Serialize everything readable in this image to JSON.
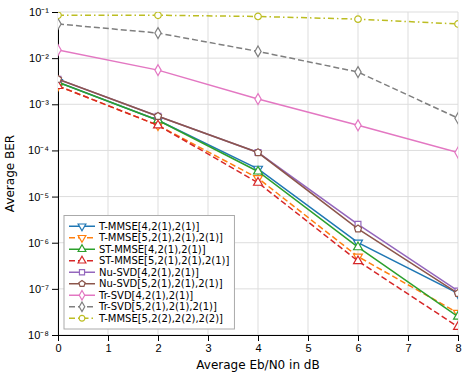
{
  "chart_data": {
    "type": "line",
    "xlabel": "Average Eb/N0 in dB",
    "ylabel": "Average BER",
    "x": [
      0,
      2,
      4,
      6,
      8
    ],
    "xlim": [
      0,
      8
    ],
    "xticks": [
      0,
      1,
      2,
      3,
      4,
      5,
      6,
      7,
      8
    ],
    "ylim": [
      1e-08,
      0.1
    ],
    "yticks": [
      {
        "value": 1e-08,
        "label": "10⁻⁸"
      },
      {
        "value": 1e-07,
        "label": "10⁻⁷"
      },
      {
        "value": 1e-06,
        "label": "10⁻⁶"
      },
      {
        "value": 1e-05,
        "label": "10⁻⁵"
      },
      {
        "value": 0.0001,
        "label": "10⁻⁴"
      },
      {
        "value": 0.001,
        "label": "10⁻³"
      },
      {
        "value": 0.01,
        "label": "10⁻²"
      },
      {
        "value": 0.1,
        "label": "10⁻¹"
      }
    ],
    "log": "y",
    "grid": true,
    "legend": "lower left",
    "series": [
      {
        "name": "T-MMSE[4,2(1),2(1)]",
        "marker": "triangle-down",
        "line_style": "solid",
        "values": [
          0.003,
          0.00045,
          4e-05,
          1e-06,
          8e-08
        ]
      },
      {
        "name": "T-MMSE[5,2(1),2(1),2(1)]",
        "marker": "triangle-down",
        "line_style": "dashed",
        "values": [
          0.0025,
          0.00035,
          2.5e-05,
          5e-07,
          3e-08
        ]
      },
      {
        "name": "ST-MMSE[4,2(1),2(1)]",
        "marker": "triangle-up",
        "line_style": "solid",
        "values": [
          0.003,
          0.00045,
          3.5e-05,
          8e-07,
          2.5e-08
        ]
      },
      {
        "name": "ST-MMSE[5,2(1),2(1),2(1)]",
        "marker": "triangle-up",
        "line_style": "dashed",
        "values": [
          0.0025,
          0.00035,
          2e-05,
          4e-07,
          1.5e-08
        ]
      },
      {
        "name": "Nu-SVD[4,2(1),2(1)]",
        "marker": "square",
        "line_style": "solid",
        "values": [
          0.0035,
          0.00055,
          9e-05,
          2.5e-06,
          9e-08
        ]
      },
      {
        "name": "Nu-SVD[5,2(1),2(1),2(1)]",
        "marker": "pentagon",
        "line_style": "solid",
        "values": [
          0.0035,
          0.00055,
          9e-05,
          2e-06,
          8e-08
        ]
      },
      {
        "name": "Tr-SVD[4,2(1),2(1)]",
        "marker": "diamond",
        "line_style": "solid",
        "values": [
          0.015,
          0.0055,
          0.0013,
          0.00035,
          9e-05
        ]
      },
      {
        "name": "Tr-SVD[5,2(1),2(1),2(1)]",
        "marker": "diamond",
        "line_style": "dashed",
        "values": [
          0.055,
          0.035,
          0.014,
          0.005,
          0.0005
        ]
      },
      {
        "name": "T-MMSE[5,2(2),2(2),2(2)]",
        "marker": "circle",
        "line_style": "dashdot",
        "values": [
          0.085,
          0.085,
          0.08,
          0.07,
          0.055
        ]
      }
    ]
  }
}
